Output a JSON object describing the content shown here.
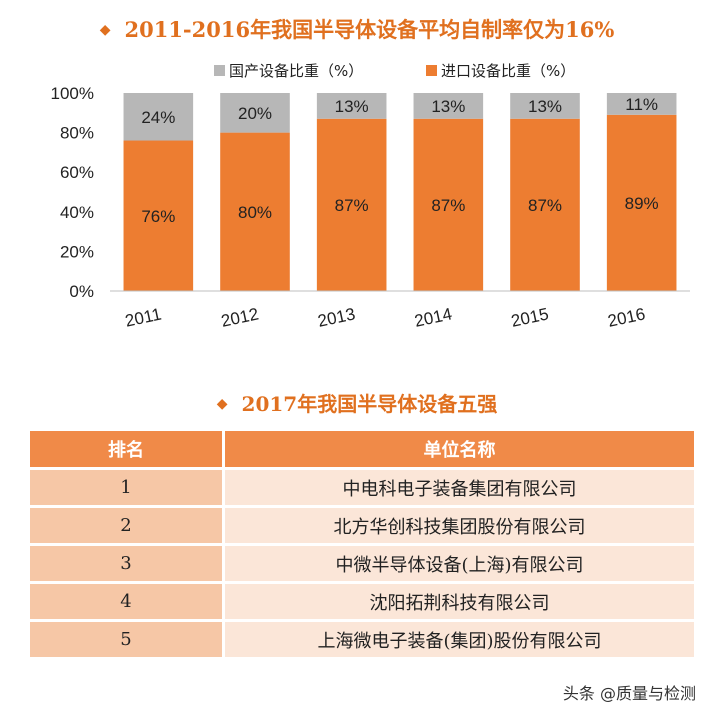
{
  "chart_title": "2011-2016年我国半导体设备平均自制率仅为16%",
  "chart_data": {
    "type": "bar",
    "stacked": true,
    "categories": [
      "2011",
      "2012",
      "2013",
      "2014",
      "2015",
      "2016"
    ],
    "series": [
      {
        "name": "进口设备比重（%）",
        "values": [
          76,
          80,
          87,
          87,
          87,
          89
        ],
        "color": "#ed7d31"
      },
      {
        "name": "国产设备比重（%）",
        "values": [
          24,
          20,
          13,
          13,
          13,
          11
        ],
        "color": "#b7b7b7"
      }
    ],
    "data_labels": {
      "进口设备比重（%）": [
        "76%",
        "80%",
        "87%",
        "87%",
        "87%",
        "89%"
      ],
      "国产设备比重（%）": [
        "24%",
        "20%",
        "13%",
        "13%",
        "13%",
        "11%"
      ]
    },
    "y_ticks": [
      "0%",
      "20%",
      "40%",
      "60%",
      "80%",
      "100%"
    ],
    "ylim": [
      0,
      100
    ],
    "legend_position": "top",
    "grid": false
  },
  "table_title": "2017年我国半导体设备五强",
  "table": {
    "headers": [
      "排名",
      "单位名称"
    ],
    "rows": [
      [
        "1",
        "中电科电子装备集团有限公司"
      ],
      [
        "2",
        "北方华创科技集团股份有限公司"
      ],
      [
        "3",
        "中微半导体设备(上海)有限公司"
      ],
      [
        "4",
        "沈阳拓荆科技有限公司"
      ],
      [
        "5",
        "上海微电子装备(集团)股份有限公司"
      ]
    ]
  },
  "watermark": "头条 @质量与检测"
}
